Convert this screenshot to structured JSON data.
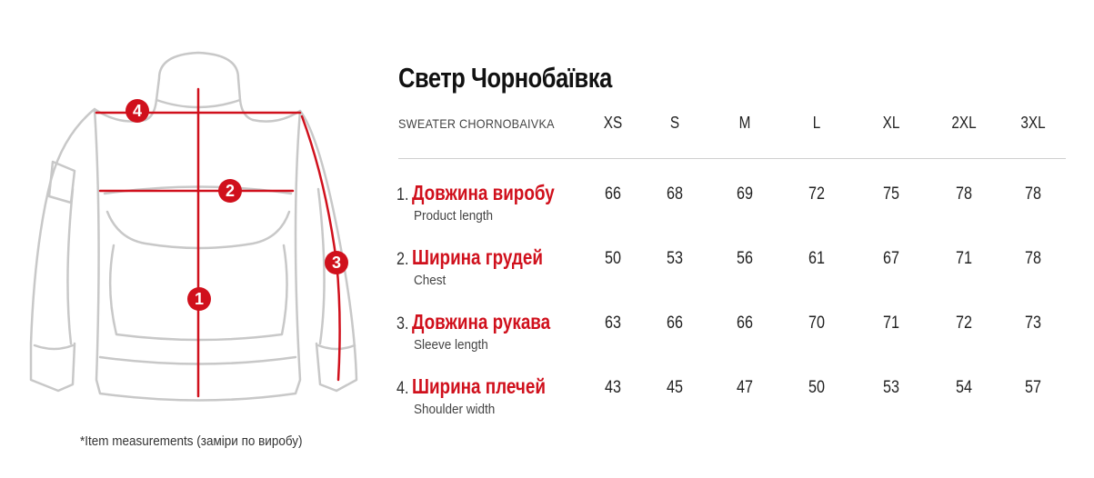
{
  "title": "Светр Чорнобаївка",
  "subtitle": "SWEATER CHORNOBAIVKA",
  "sizes": [
    "XS",
    "S",
    "M",
    "L",
    "XL",
    "2XL",
    "3XL"
  ],
  "rows": [
    {
      "num": "1.",
      "label": "Довжина виробу",
      "sub": "Product length",
      "values": [
        "66",
        "68",
        "69",
        "72",
        "75",
        "78",
        "78"
      ]
    },
    {
      "num": "2.",
      "label": "Ширина грудей",
      "sub": "Chest",
      "values": [
        "50",
        "53",
        "56",
        "61",
        "67",
        "71",
        "78"
      ]
    },
    {
      "num": "3.",
      "label": "Довжина рукава",
      "sub": "Sleeve length",
      "values": [
        "63",
        "66",
        "66",
        "70",
        "71",
        "72",
        "73"
      ]
    },
    {
      "num": "4.",
      "label": "Ширина плечей",
      "sub": "Shoulder width",
      "values": [
        "43",
        "45",
        "47",
        "50",
        "53",
        "54",
        "57"
      ]
    }
  ],
  "markers": [
    "1",
    "2",
    "3",
    "4"
  ],
  "footnote": "*Item measurements (заміри по виробу)",
  "colors": {
    "accent": "#d0101c",
    "outline": "#c8c8c8",
    "text": "#222222"
  }
}
